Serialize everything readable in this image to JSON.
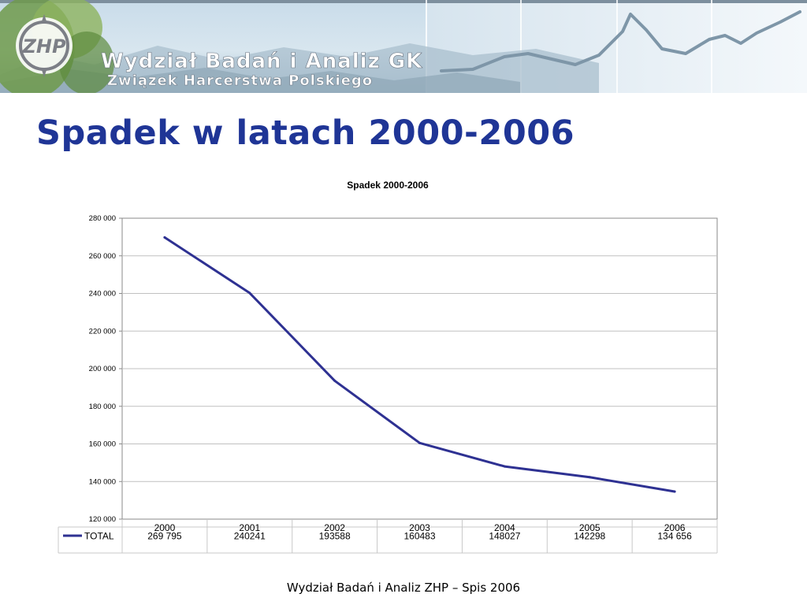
{
  "banner": {
    "line1": "Wydział Badań i Analiz GK",
    "line2": "Związek Harcerstwa Polskiego",
    "logo_text": "ZHP"
  },
  "slide": {
    "title": "Spadek w latach 2000-2006",
    "footer": "Wydział Badań i Analiz ZHP – Spis 2006"
  },
  "chart_data": {
    "type": "line",
    "title": "Spadek 2000-2006",
    "xlabel": "",
    "ylabel": "",
    "categories": [
      "2000",
      "2001",
      "2002",
      "2003",
      "2004",
      "2005",
      "2006"
    ],
    "ylim": [
      120000,
      280000
    ],
    "y_ticks": [
      120000,
      140000,
      160000,
      180000,
      200000,
      220000,
      240000,
      260000,
      280000
    ],
    "y_tick_labels": [
      "120 000",
      "140 000",
      "160 000",
      "180 000",
      "200 000",
      "220 000",
      "240 000",
      "260 000",
      "280 000"
    ],
    "grid": true,
    "legend": "data-table",
    "series": [
      {
        "name": "TOTAL",
        "color": "#2e3192",
        "values": [
          269795,
          240241,
          193588,
          160483,
          148027,
          142298,
          134656
        ],
        "table_labels": [
          "269 795",
          "240241",
          "193588",
          "160483",
          "148027",
          "142298",
          "134 656"
        ]
      }
    ]
  },
  "colors": {
    "title": "#1f3596",
    "line": "#2e3192",
    "grid": "#c0c0c0"
  }
}
